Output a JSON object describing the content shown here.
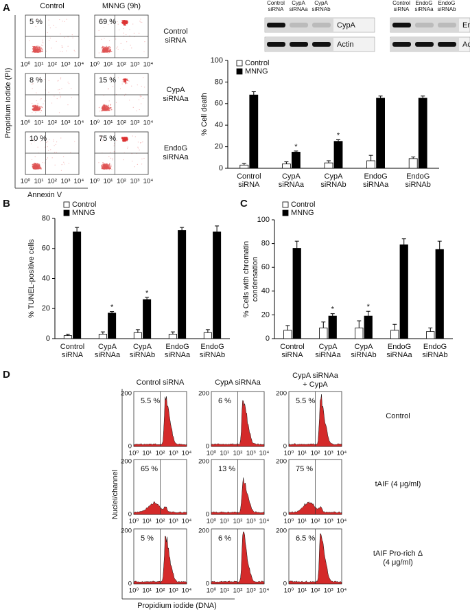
{
  "panel_a": {
    "label": "A",
    "columns": [
      "Control",
      "MNNG (9h)"
    ],
    "rows": [
      [
        "Control",
        "siRNA"
      ],
      [
        "CypA",
        "siRNAa"
      ],
      [
        "EndoG",
        "siRNAa"
      ]
    ],
    "percentages": [
      [
        "5 %",
        "69 %"
      ],
      [
        "8 %",
        "15 %"
      ],
      [
        "10 %",
        "75 %"
      ]
    ],
    "x_ticks": [
      "10⁰",
      "10¹",
      "10²",
      "10³",
      "10⁴"
    ],
    "y_axis_label": "Propidium iodide (PI)",
    "x_axis_label": "Annexin V",
    "blots": [
      {
        "lanes": [
          [
            "Control",
            "siRNA"
          ],
          [
            "CypA",
            "siRNAa"
          ],
          [
            "CypA",
            "siRNAb"
          ]
        ],
        "bands": [
          "CypA",
          "Actin"
        ]
      },
      {
        "lanes": [
          [
            "Control",
            "siRNA"
          ],
          [
            "EndoG",
            "siRNAa"
          ],
          [
            "EndoG",
            "siRNAb"
          ]
        ],
        "bands": [
          "EndoG",
          "Actin"
        ]
      }
    ]
  },
  "panel_b": {
    "label": "B"
  },
  "panel_c": {
    "label": "C"
  },
  "panel_d": {
    "label": "D",
    "columns": [
      [
        "Control siRNA"
      ],
      [
        "CypA siRNAa"
      ],
      [
        "CypA siRNAa",
        "+ CypA"
      ]
    ],
    "rows": [
      [
        "Control"
      ],
      [
        "tAIF (4 μg/ml)"
      ],
      [
        "tAIF Pro-rich Δ",
        "(4 μg/ml)"
      ]
    ],
    "percentages": [
      [
        "5.5 %",
        "6 %",
        "5.5 %"
      ],
      [
        "65 %",
        "13 %",
        "75 %"
      ],
      [
        "5 %",
        "6 %",
        "6.5 %"
      ]
    ],
    "x_ticks": [
      "10⁰",
      "10¹",
      "10²",
      "10³",
      "10⁴"
    ],
    "y_ticks": [
      "0",
      "200"
    ],
    "y_axis_label": "Nuclei/channel",
    "x_axis_label": "Propidium iodide (DNA)"
  },
  "chart_data": [
    {
      "type": "bar",
      "ylabel": [
        "% Cell death"
      ],
      "categories": [
        [
          "Control",
          "siRNA"
        ],
        [
          "CypA",
          "siRNAa"
        ],
        [
          "CypA",
          "siRNAb"
        ],
        [
          "EndoG",
          "siRNAa"
        ],
        [
          "EndoG",
          "siRNAb"
        ]
      ],
      "series": [
        {
          "name": "Control",
          "color": "#ffffff",
          "values": [
            3,
            4,
            5,
            7,
            9
          ],
          "errors": [
            1.5,
            2,
            2,
            5,
            1.5
          ]
        },
        {
          "name": "MNNG",
          "color": "#000000",
          "values": [
            68,
            15,
            25,
            65,
            65
          ],
          "errors": [
            3,
            1,
            1.5,
            2,
            2
          ]
        }
      ],
      "annotations": [
        "*",
        "*"
      ],
      "ylim": [
        0,
        100
      ],
      "yticks": [
        0,
        20,
        40,
        60,
        80,
        100
      ]
    },
    {
      "type": "bar",
      "ylabel": [
        "% TUNEL-positive cells"
      ],
      "categories": [
        [
          "Control",
          "siRNA"
        ],
        [
          "CypA",
          "siRNAa"
        ],
        [
          "CypA",
          "siRNAb"
        ],
        [
          "EndoG",
          "siRNAa"
        ],
        [
          "EndoG",
          "siRNAb"
        ]
      ],
      "series": [
        {
          "name": "Control",
          "color": "#ffffff",
          "values": [
            2,
            3,
            4,
            3,
            4
          ],
          "errors": [
            1,
            1.5,
            2,
            1.5,
            2
          ]
        },
        {
          "name": "MNNG",
          "color": "#000000",
          "values": [
            71,
            17,
            26,
            72,
            71
          ],
          "errors": [
            3,
            1,
            1.5,
            2,
            4
          ]
        }
      ],
      "annotations": [
        "*",
        "*"
      ],
      "ylim": [
        0,
        80
      ],
      "yticks": [
        0,
        20,
        40,
        60,
        80
      ]
    },
    {
      "type": "bar",
      "ylabel": [
        "% Cells with chromatin",
        "condensation"
      ],
      "categories": [
        [
          "Control",
          "siRNA"
        ],
        [
          "CypA",
          "siRNAa"
        ],
        [
          "CypA",
          "siRNAb"
        ],
        [
          "EndoG",
          "siRNAa"
        ],
        [
          "EndoG",
          "siRNAb"
        ]
      ],
      "series": [
        {
          "name": "Control",
          "color": "#ffffff",
          "values": [
            7,
            9,
            9,
            7,
            6
          ],
          "errors": [
            4,
            5,
            6,
            5,
            3
          ]
        },
        {
          "name": "MNNG",
          "color": "#000000",
          "values": [
            76,
            19,
            19,
            79,
            75
          ],
          "errors": [
            6,
            2,
            4,
            5,
            7
          ]
        }
      ],
      "annotations": [
        "*",
        "*"
      ],
      "ylim": [
        0,
        100
      ],
      "yticks": [
        0,
        20,
        40,
        60,
        80,
        100
      ]
    }
  ]
}
